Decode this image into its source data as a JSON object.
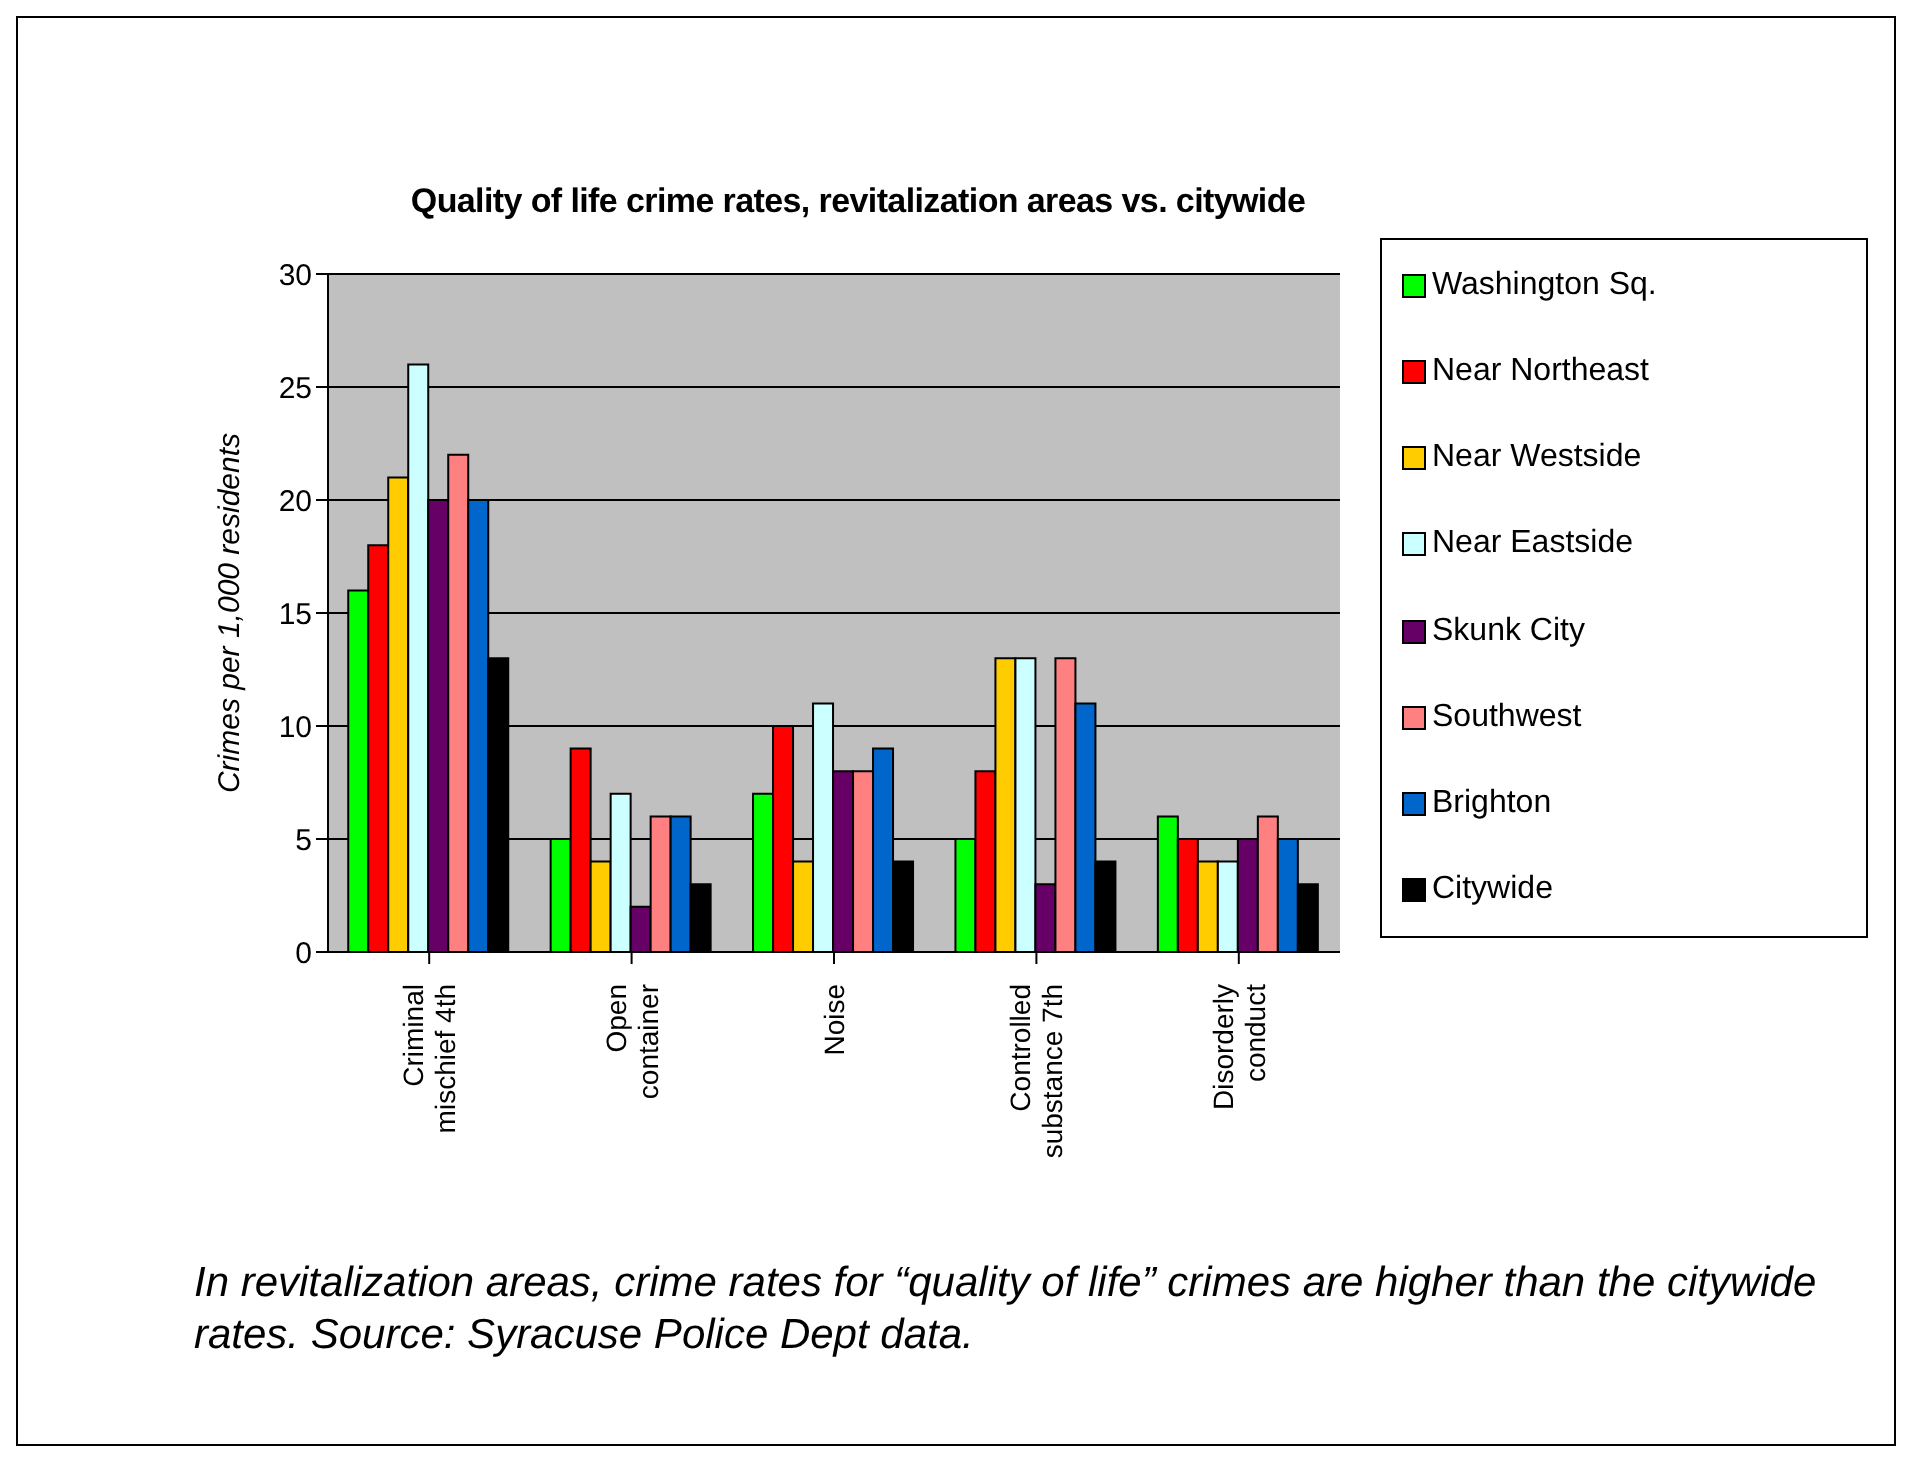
{
  "chart_data": {
    "type": "bar",
    "title": "Quality of life crime rates, revitalization areas vs. citywide",
    "ylabel": "Crimes per 1,000 residents",
    "categories": [
      "Criminal mischief 4th",
      "Open container",
      "Noise",
      "Controlled substance 7th",
      "Disorderly conduct"
    ],
    "series": [
      {
        "name": "Washington Sq.",
        "color": "#00ff00",
        "values": [
          16,
          5,
          7,
          5,
          6
        ]
      },
      {
        "name": "Near Northeast",
        "color": "#ff0000",
        "values": [
          18,
          9,
          10,
          8,
          5
        ]
      },
      {
        "name": "Near Westside",
        "color": "#ffcc00",
        "values": [
          21,
          4,
          4,
          13,
          4
        ]
      },
      {
        "name": "Near Eastside",
        "color": "#ccffff",
        "values": [
          26,
          7,
          11,
          13,
          4
        ]
      },
      {
        "name": "Skunk City",
        "color": "#660066",
        "values": [
          20,
          2,
          8,
          3,
          5
        ]
      },
      {
        "name": "Southwest",
        "color": "#ff8080",
        "values": [
          22,
          6,
          8,
          13,
          6
        ]
      },
      {
        "name": "Brighton",
        "color": "#0066cc",
        "values": [
          20,
          6,
          9,
          11,
          5
        ]
      },
      {
        "name": "Citywide",
        "color": "#000000",
        "values": [
          13,
          3,
          4,
          4,
          3
        ]
      }
    ],
    "ylim": [
      0,
      30
    ],
    "yticks": [
      0,
      5,
      10,
      15,
      20,
      25,
      30
    ],
    "grid": "y",
    "legend": "right",
    "annotations": [
      "In revitalization areas, crime rates for “quality of life” crimes are higher than the citywide rates.  Source: Syracuse Police Dept data."
    ]
  }
}
